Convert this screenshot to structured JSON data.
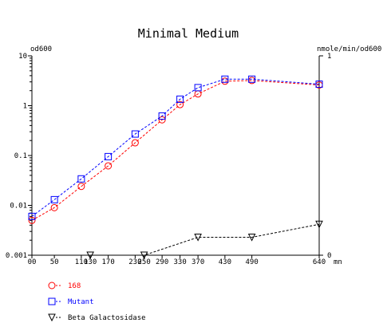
{
  "chart_data": {
    "type": "line",
    "title": "Minimal Medium",
    "xlabel": "mn",
    "ylabel_left": "od600",
    "ylabel_right": "nmole/min/od600",
    "x_ticks": [
      0,
      50,
      110,
      130,
      170,
      230,
      250,
      290,
      330,
      370,
      430,
      490,
      640
    ],
    "x_tick_labels": [
      "00",
      "50",
      "110",
      "130",
      "170",
      "230",
      "250",
      "290",
      "330",
      "370",
      "430",
      "490",
      "640"
    ],
    "xlim": [
      0,
      640
    ],
    "y_left": {
      "scale": "log",
      "lim": [
        0.001,
        10
      ],
      "tick_labels": [
        "0.001",
        "0.01",
        "0.1",
        "1",
        "10"
      ]
    },
    "y_right": {
      "scale": "linear",
      "lim": [
        0,
        1
      ],
      "tick_labels": [
        "0",
        "1"
      ]
    },
    "grid": false,
    "legend_position": "bottom-left",
    "series": [
      {
        "name": "168",
        "axis": "left",
        "color": "#ff0000",
        "marker": "circle",
        "x": [
          0,
          50,
          110,
          170,
          230,
          290,
          330,
          370,
          430,
          490,
          640
        ],
        "y": [
          0.005,
          0.009,
          0.024,
          0.062,
          0.18,
          0.52,
          1.05,
          1.72,
          3.1,
          3.2,
          2.6
        ]
      },
      {
        "name": "Mutant",
        "axis": "left",
        "color": "#0000ff",
        "marker": "square",
        "x": [
          0,
          50,
          110,
          170,
          230,
          290,
          330,
          370,
          430,
          490,
          640
        ],
        "y": [
          0.006,
          0.013,
          0.034,
          0.095,
          0.27,
          0.62,
          1.35,
          2.3,
          3.4,
          3.4,
          2.7
        ]
      },
      {
        "name": "Beta Galactosidase",
        "axis": "right",
        "color": "#000000",
        "marker": "triangle-down",
        "x": [
          130,
          250,
          370,
          490,
          640
        ],
        "y": [
          0,
          0,
          0.09,
          0.09,
          0.155
        ]
      }
    ]
  }
}
